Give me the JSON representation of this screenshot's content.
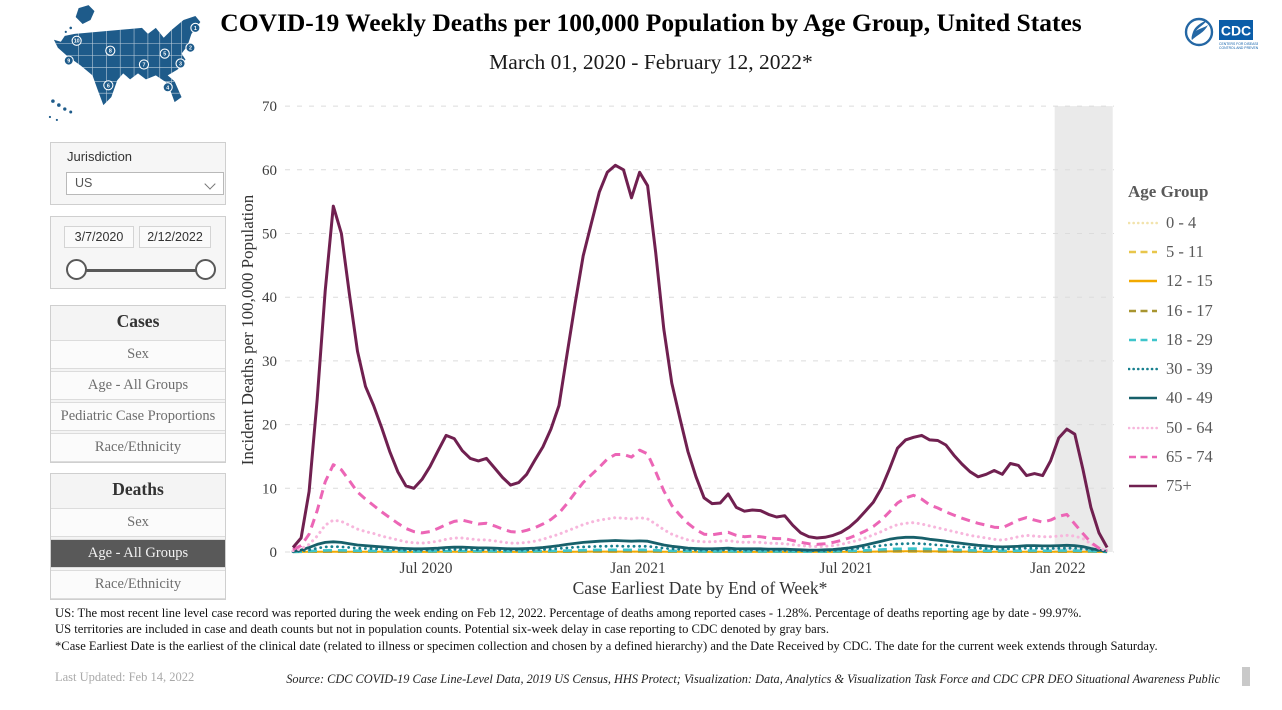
{
  "header": {
    "title": "COVID-19 Weekly Deaths per 100,000 Population by Age Group, United States",
    "subtitle": "March 01, 2020 - February 12, 2022*"
  },
  "logo": {
    "cdc_label": "CDC"
  },
  "sidebar": {
    "jurisdiction": {
      "label": "Jurisdiction",
      "value": "US"
    },
    "date_range": {
      "start": "3/7/2020",
      "end": "2/12/2022"
    },
    "cases_panel": {
      "title": "Cases",
      "items": [
        "Sex",
        "Age - All Groups",
        "Pediatric Case Proportions",
        "Race/Ethnicity"
      ]
    },
    "deaths_panel": {
      "title": "Deaths",
      "items": [
        "Sex",
        "Age - All Groups",
        "Race/Ethnicity"
      ],
      "selected": "Age - All Groups"
    }
  },
  "chart_data": {
    "type": "line",
    "xlabel": "Case Earliest Date by End of Week*",
    "ylabel": "Incident Deaths per 100,000 Population",
    "ylim": [
      0,
      70
    ],
    "yticks": [
      0,
      10,
      20,
      30,
      40,
      50,
      60,
      70
    ],
    "x_start_date": "3/7/2020",
    "x_end_date": "2/12/2022",
    "weeks_total": 102,
    "xticks": [
      {
        "label": "Jul 2020",
        "week": 16.5
      },
      {
        "label": "Jan 2021",
        "week": 42.8
      },
      {
        "label": "Jul 2021",
        "week": 68.6
      },
      {
        "label": "Jan 2022",
        "week": 94.9
      }
    ],
    "gray_band": {
      "start_week": 94.5,
      "end_week": 101.7,
      "meaning": "Potential six-week delay in case reporting to CDC"
    },
    "legend_title": "Age Group",
    "grid_color": "#dcdcdc",
    "band_color": "#eaeaea",
    "series": [
      {
        "name": "0 - 4",
        "color": "#f2e3ac",
        "style": "dotted",
        "width": 2.2,
        "values": [
          0.01,
          0.02,
          0.03,
          0.04,
          0.04,
          0.04,
          0.04,
          0.03,
          0.03,
          0.03,
          0.03,
          0.02,
          0.02,
          0.02,
          0.02,
          0.02,
          0.02,
          0.02,
          0.02,
          0.02,
          0.02,
          0.02,
          0.02,
          0.02,
          0.02,
          0.02,
          0.02,
          0.02,
          0.02,
          0.02,
          0.02,
          0.02,
          0.03,
          0.03,
          0.04,
          0.04,
          0.04,
          0.05,
          0.05,
          0.05,
          0.05,
          0.05,
          0.05,
          0.05,
          0.05,
          0.04,
          0.04,
          0.03,
          0.03,
          0.02,
          0.02,
          0.02,
          0.02,
          0.02,
          0.02,
          0.02,
          0.02,
          0.02,
          0.02,
          0.02,
          0.02,
          0.02,
          0.02,
          0.01,
          0.01,
          0.01,
          0.01,
          0.02,
          0.02,
          0.03,
          0.03,
          0.04,
          0.05,
          0.05,
          0.06,
          0.06,
          0.06,
          0.06,
          0.06,
          0.05,
          0.05,
          0.05,
          0.04,
          0.04,
          0.04,
          0.03,
          0.03,
          0.03,
          0.03,
          0.03,
          0.03,
          0.04,
          0.04,
          0.03,
          0.03,
          0.04,
          0.04,
          0.04,
          0.03,
          0.02,
          0.01,
          0.01
        ]
      },
      {
        "name": "5 - 11",
        "color": "#e8c64b",
        "style": "dashed",
        "width": 2.2,
        "values": [
          0.0,
          0.0,
          0.01,
          0.01,
          0.01,
          0.01,
          0.01,
          0.01,
          0.01,
          0.01,
          0.01,
          0.01,
          0.01,
          0.01,
          0.01,
          0.01,
          0.01,
          0.01,
          0.01,
          0.01,
          0.01,
          0.01,
          0.01,
          0.01,
          0.01,
          0.01,
          0.01,
          0.01,
          0.01,
          0.01,
          0.01,
          0.01,
          0.01,
          0.01,
          0.01,
          0.01,
          0.02,
          0.02,
          0.02,
          0.02,
          0.02,
          0.02,
          0.02,
          0.02,
          0.02,
          0.02,
          0.01,
          0.01,
          0.01,
          0.01,
          0.01,
          0.01,
          0.01,
          0.01,
          0.01,
          0.01,
          0.01,
          0.01,
          0.01,
          0.01,
          0.01,
          0.01,
          0.01,
          0.01,
          0.01,
          0.01,
          0.01,
          0.01,
          0.01,
          0.01,
          0.02,
          0.02,
          0.02,
          0.03,
          0.03,
          0.03,
          0.03,
          0.03,
          0.03,
          0.03,
          0.02,
          0.02,
          0.02,
          0.02,
          0.02,
          0.02,
          0.02,
          0.01,
          0.01,
          0.01,
          0.02,
          0.02,
          0.02,
          0.02,
          0.02,
          0.02,
          0.02,
          0.02,
          0.01,
          0.01,
          0.01,
          0.0
        ]
      },
      {
        "name": "12 - 15",
        "color": "#f2a900",
        "style": "solid",
        "width": 2,
        "values": [
          0.01,
          0.01,
          0.03,
          0.04,
          0.05,
          0.05,
          0.05,
          0.04,
          0.04,
          0.03,
          0.03,
          0.03,
          0.03,
          0.03,
          0.02,
          0.02,
          0.02,
          0.02,
          0.03,
          0.03,
          0.03,
          0.03,
          0.03,
          0.03,
          0.03,
          0.03,
          0.02,
          0.02,
          0.02,
          0.02,
          0.03,
          0.03,
          0.03,
          0.04,
          0.05,
          0.05,
          0.06,
          0.06,
          0.07,
          0.07,
          0.07,
          0.07,
          0.07,
          0.07,
          0.07,
          0.06,
          0.05,
          0.04,
          0.03,
          0.03,
          0.03,
          0.02,
          0.02,
          0.02,
          0.03,
          0.02,
          0.02,
          0.02,
          0.02,
          0.02,
          0.02,
          0.02,
          0.02,
          0.01,
          0.01,
          0.01,
          0.01,
          0.02,
          0.03,
          0.03,
          0.04,
          0.05,
          0.07,
          0.08,
          0.09,
          0.1,
          0.11,
          0.11,
          0.1,
          0.09,
          0.09,
          0.08,
          0.07,
          0.07,
          0.06,
          0.05,
          0.05,
          0.04,
          0.04,
          0.04,
          0.05,
          0.05,
          0.05,
          0.05,
          0.04,
          0.05,
          0.05,
          0.05,
          0.04,
          0.03,
          0.01,
          0.01
        ]
      },
      {
        "name": "16 - 17",
        "color": "#a89530",
        "style": "dashed",
        "width": 2.2,
        "values": [
          0.01,
          0.02,
          0.04,
          0.06,
          0.07,
          0.08,
          0.07,
          0.06,
          0.05,
          0.05,
          0.05,
          0.04,
          0.04,
          0.04,
          0.03,
          0.03,
          0.03,
          0.03,
          0.04,
          0.04,
          0.05,
          0.05,
          0.04,
          0.04,
          0.04,
          0.04,
          0.03,
          0.03,
          0.03,
          0.03,
          0.04,
          0.04,
          0.05,
          0.06,
          0.07,
          0.08,
          0.09,
          0.1,
          0.1,
          0.11,
          0.11,
          0.11,
          0.1,
          0.1,
          0.1,
          0.08,
          0.07,
          0.06,
          0.05,
          0.04,
          0.04,
          0.03,
          0.03,
          0.03,
          0.04,
          0.03,
          0.03,
          0.03,
          0.03,
          0.03,
          0.03,
          0.03,
          0.02,
          0.02,
          0.02,
          0.02,
          0.02,
          0.03,
          0.04,
          0.05,
          0.06,
          0.08,
          0.1,
          0.12,
          0.14,
          0.15,
          0.16,
          0.16,
          0.15,
          0.14,
          0.13,
          0.12,
          0.11,
          0.1,
          0.09,
          0.08,
          0.07,
          0.06,
          0.06,
          0.06,
          0.07,
          0.07,
          0.07,
          0.07,
          0.06,
          0.07,
          0.07,
          0.07,
          0.06,
          0.04,
          0.02,
          0.01
        ]
      },
      {
        "name": "18 - 29",
        "color": "#3ec5cb",
        "style": "dashed",
        "width": 2.6,
        "values": [
          0.02,
          0.05,
          0.12,
          0.2,
          0.25,
          0.28,
          0.26,
          0.23,
          0.2,
          0.18,
          0.17,
          0.15,
          0.14,
          0.12,
          0.11,
          0.1,
          0.1,
          0.11,
          0.12,
          0.14,
          0.15,
          0.15,
          0.14,
          0.13,
          0.13,
          0.12,
          0.11,
          0.1,
          0.1,
          0.11,
          0.12,
          0.14,
          0.16,
          0.19,
          0.22,
          0.26,
          0.29,
          0.31,
          0.33,
          0.34,
          0.35,
          0.34,
          0.33,
          0.34,
          0.33,
          0.28,
          0.22,
          0.18,
          0.15,
          0.12,
          0.11,
          0.1,
          0.1,
          0.11,
          0.12,
          0.1,
          0.1,
          0.1,
          0.1,
          0.09,
          0.09,
          0.09,
          0.08,
          0.07,
          0.07,
          0.07,
          0.08,
          0.09,
          0.12,
          0.16,
          0.21,
          0.27,
          0.33,
          0.4,
          0.46,
          0.5,
          0.52,
          0.53,
          0.51,
          0.47,
          0.43,
          0.39,
          0.35,
          0.31,
          0.27,
          0.24,
          0.21,
          0.19,
          0.18,
          0.19,
          0.21,
          0.22,
          0.22,
          0.21,
          0.21,
          0.22,
          0.22,
          0.22,
          0.18,
          0.12,
          0.07,
          0.02
        ]
      },
      {
        "name": "30 - 39",
        "color": "#18808f",
        "style": "dotted",
        "width": 2.8,
        "values": [
          0.05,
          0.15,
          0.35,
          0.6,
          0.8,
          0.85,
          0.8,
          0.7,
          0.6,
          0.55,
          0.5,
          0.45,
          0.4,
          0.35,
          0.3,
          0.3,
          0.3,
          0.3,
          0.35,
          0.4,
          0.4,
          0.4,
          0.4,
          0.35,
          0.35,
          0.35,
          0.3,
          0.3,
          0.3,
          0.3,
          0.35,
          0.4,
          0.45,
          0.55,
          0.65,
          0.75,
          0.8,
          0.85,
          0.9,
          0.9,
          0.95,
          0.9,
          0.9,
          0.9,
          0.9,
          0.75,
          0.6,
          0.5,
          0.4,
          0.35,
          0.3,
          0.3,
          0.3,
          0.3,
          0.35,
          0.3,
          0.3,
          0.3,
          0.3,
          0.25,
          0.25,
          0.25,
          0.25,
          0.2,
          0.2,
          0.2,
          0.2,
          0.25,
          0.3,
          0.4,
          0.55,
          0.7,
          0.85,
          1.0,
          1.15,
          1.25,
          1.3,
          1.35,
          1.3,
          1.2,
          1.1,
          1.0,
          0.9,
          0.8,
          0.7,
          0.6,
          0.55,
          0.5,
          0.45,
          0.5,
          0.55,
          0.6,
          0.6,
          0.55,
          0.55,
          0.6,
          0.6,
          0.6,
          0.5,
          0.35,
          0.2,
          0.05
        ]
      },
      {
        "name": "40 - 49",
        "color": "#17606a",
        "style": "solid",
        "width": 2.8,
        "values": [
          0.1,
          0.3,
          0.7,
          1.2,
          1.5,
          1.6,
          1.5,
          1.3,
          1.1,
          1.0,
          0.9,
          0.8,
          0.7,
          0.6,
          0.55,
          0.5,
          0.5,
          0.55,
          0.6,
          0.7,
          0.75,
          0.75,
          0.7,
          0.65,
          0.65,
          0.6,
          0.55,
          0.5,
          0.5,
          0.55,
          0.6,
          0.7,
          0.85,
          1.0,
          1.2,
          1.35,
          1.5,
          1.6,
          1.7,
          1.75,
          1.8,
          1.75,
          1.7,
          1.75,
          1.7,
          1.4,
          1.1,
          0.9,
          0.75,
          0.6,
          0.55,
          0.5,
          0.5,
          0.55,
          0.6,
          0.5,
          0.5,
          0.5,
          0.5,
          0.45,
          0.45,
          0.45,
          0.4,
          0.35,
          0.3,
          0.3,
          0.35,
          0.4,
          0.5,
          0.65,
          0.85,
          1.1,
          1.4,
          1.7,
          2.0,
          2.2,
          2.3,
          2.3,
          2.2,
          2.0,
          1.85,
          1.7,
          1.5,
          1.35,
          1.2,
          1.05,
          0.95,
          0.85,
          0.8,
          0.85,
          0.9,
          1.0,
          1.0,
          0.95,
          0.95,
          1.0,
          1.05,
          1.0,
          0.85,
          0.55,
          0.3,
          0.1
        ]
      },
      {
        "name": "50 - 64",
        "color": "#f7b6dc",
        "style": "dotted",
        "width": 3,
        "values": [
          0.2,
          0.5,
          1.2,
          2.5,
          4.2,
          5.0,
          4.8,
          4.2,
          3.6,
          3.2,
          2.9,
          2.5,
          2.2,
          1.9,
          1.6,
          1.45,
          1.4,
          1.5,
          1.7,
          2.0,
          2.2,
          2.2,
          2.05,
          1.9,
          1.9,
          1.75,
          1.55,
          1.4,
          1.4,
          1.5,
          1.7,
          2.0,
          2.4,
          2.8,
          3.3,
          3.8,
          4.3,
          4.7,
          5.0,
          5.2,
          5.4,
          5.3,
          5.2,
          5.4,
          5.2,
          4.4,
          3.5,
          2.8,
          2.3,
          1.9,
          1.7,
          1.6,
          1.6,
          1.7,
          1.8,
          1.6,
          1.5,
          1.55,
          1.5,
          1.4,
          1.35,
          1.3,
          1.15,
          1.0,
          0.9,
          0.85,
          0.9,
          1.0,
          1.2,
          1.5,
          1.8,
          2.2,
          2.7,
          3.2,
          3.8,
          4.3,
          4.5,
          4.6,
          4.4,
          4.1,
          3.8,
          3.5,
          3.2,
          2.9,
          2.6,
          2.4,
          2.2,
          2.0,
          1.85,
          2.1,
          2.4,
          2.6,
          2.5,
          2.4,
          2.4,
          2.5,
          2.6,
          2.5,
          2.1,
          1.3,
          0.6,
          0.15
        ]
      },
      {
        "name": "65 - 74",
        "color": "#ec66b6",
        "style": "dashed",
        "width": 3,
        "values": [
          0.4,
          1.0,
          2.8,
          6.5,
          11,
          13.7,
          12.9,
          11.2,
          9.4,
          8.3,
          7.3,
          6.3,
          5.4,
          4.5,
          3.7,
          3.2,
          3.0,
          3.2,
          3.7,
          4.3,
          4.8,
          5.0,
          4.7,
          4.4,
          4.5,
          4.1,
          3.6,
          3.2,
          3.1,
          3.4,
          3.8,
          4.4,
          5.1,
          6.1,
          7.6,
          9.3,
          10.9,
          12.1,
          13.3,
          14.6,
          15.3,
          15.3,
          14.9,
          16.0,
          15.4,
          12.6,
          9.6,
          7.3,
          5.8,
          4.5,
          3.5,
          2.8,
          2.7,
          2.9,
          3.1,
          2.6,
          2.4,
          2.5,
          2.4,
          2.2,
          2.1,
          2.1,
          1.8,
          1.5,
          1.3,
          1.2,
          1.3,
          1.5,
          1.8,
          2.2,
          2.7,
          3.3,
          4.0,
          5.0,
          6.3,
          7.7,
          8.5,
          8.9,
          8.3,
          7.4,
          6.9,
          6.3,
          5.8,
          5.3,
          4.9,
          4.5,
          4.2,
          3.9,
          3.8,
          4.4,
          5.0,
          5.4,
          5.0,
          4.7,
          5.0,
          5.6,
          5.9,
          4.4,
          2.9,
          1.5,
          0.6,
          0.2
        ]
      },
      {
        "name": "75+",
        "color": "#702050",
        "style": "solid",
        "width": 3,
        "values": [
          0.7,
          2.2,
          9.5,
          24,
          41,
          54.3,
          50,
          40.5,
          31.5,
          26,
          23,
          19.5,
          15.8,
          12.6,
          10.4,
          10.0,
          11.4,
          13.4,
          15.9,
          18.3,
          17.8,
          15.9,
          14.7,
          14.3,
          14.7,
          13.2,
          11.7,
          10.5,
          10.9,
          12.2,
          14.4,
          16.5,
          19.3,
          23,
          31,
          39,
          46.5,
          51.5,
          56.5,
          59.6,
          60.7,
          60.0,
          55.6,
          59.6,
          57.5,
          47,
          35,
          26.5,
          21,
          15.8,
          11.8,
          8.5,
          7.6,
          7.7,
          9.1,
          7.0,
          6.4,
          6.6,
          6.5,
          5.9,
          5.5,
          5.7,
          4.2,
          3.0,
          2.4,
          2.2,
          2.3,
          2.6,
          3.1,
          3.9,
          5.0,
          6.4,
          7.8,
          10.0,
          13.0,
          16.3,
          17.6,
          18.0,
          18.3,
          17.6,
          17.5,
          16.8,
          15.2,
          13.8,
          12.6,
          11.8,
          12.2,
          12.8,
          12.2,
          13.9,
          13.6,
          12.0,
          12.3,
          12.0,
          14.3,
          17.9,
          19.3,
          18.5,
          13.0,
          7.0,
          3.0,
          0.7
        ]
      }
    ]
  },
  "footnotes": {
    "line1": "US: The most recent line level case record was reported during the week ending on Feb 12, 2022. Percentage of deaths among reported cases - 1.28%. Percentage of deaths reporting age by date - 99.97%.",
    "line2": "US territories are included in case and death counts but not in population counts. Potential six-week delay in case reporting to CDC denoted by gray bars.",
    "line3": "*Case Earliest Date is the earliest of the clinical date (related to illness or specimen collection and chosen by a defined hierarchy) and the Date Received by CDC. The date for the current week extends through Saturday."
  },
  "footer": {
    "last_updated": "Last Updated: Feb 14, 2022",
    "source": "Source: CDC COVID-19 Case Line-Level Data, 2019 US Census, HHS Protect; Visualization: Data, Analytics & Visualization Task Force and CDC CPR DEO Situational Awareness Public"
  }
}
